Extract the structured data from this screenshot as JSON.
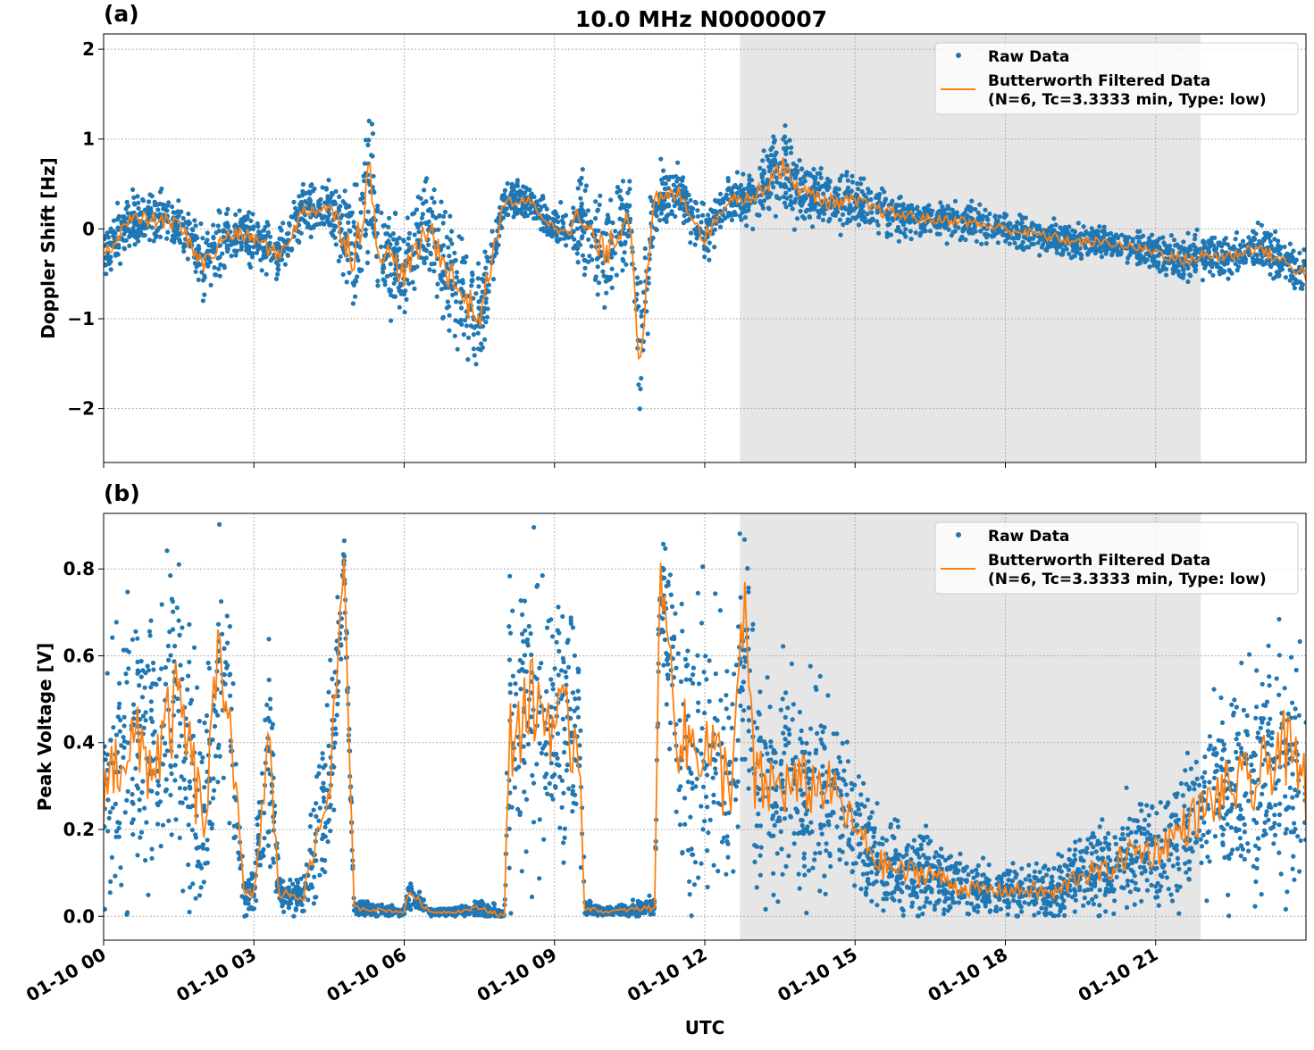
{
  "title": "10.0 MHz N0000007",
  "xlabel": "UTC",
  "x_tick_labels": [
    "01-10 00",
    "01-10 03",
    "01-10 06",
    "01-10 09",
    "01-10 12",
    "01-10 15",
    "01-10 18",
    "01-10 21"
  ],
  "x_tick_hours": [
    0,
    3,
    6,
    9,
    12,
    15,
    18,
    21
  ],
  "xlim_hours": [
    0,
    24
  ],
  "shaded_interval_hours": [
    12.7,
    21.9
  ],
  "colors": {
    "raw": "#1f77b4",
    "filtered": "#ff7f0e",
    "shade": "#e6e6e6"
  },
  "legend": {
    "raw": "Raw Data",
    "filtered_line1": "Butterworth Filtered Data",
    "filtered_line2": "(N=6, Tc=3.3333 min, Type: low)",
    "placement": "upper-right"
  },
  "chart_data": [
    {
      "type": "scatter+line",
      "panel_label": "(a)",
      "ylabel": "Doppler Shift [Hz]",
      "ylim": [
        -2.6,
        2.17
      ],
      "y_ticks": [
        -2,
        -1,
        0,
        1,
        2
      ],
      "y_tick_labels": [
        "−2",
        "−1",
        "0",
        "1",
        "2"
      ],
      "grid": true,
      "x_hours": [
        0,
        0.5,
        1,
        1.5,
        2,
        2.5,
        3,
        3.5,
        4,
        4.5,
        5,
        5.3,
        5.5,
        6,
        6.5,
        7,
        7.5,
        8,
        8.5,
        9,
        9.5,
        10,
        10.5,
        10.7,
        11,
        11.5,
        12,
        12.5,
        13,
        13.5,
        14,
        14.5,
        15,
        15.5,
        16,
        16.5,
        17,
        17.5,
        18,
        18.5,
        19,
        19.5,
        20,
        20.5,
        21,
        21.5,
        22,
        22.5,
        23,
        23.5,
        24
      ],
      "filtered": [
        -0.3,
        0.1,
        0.1,
        0.05,
        -0.4,
        -0.05,
        -0.1,
        -0.3,
        0.2,
        0.25,
        -0.3,
        0.6,
        -0.2,
        -0.5,
        0.0,
        -0.6,
        -1.0,
        0.3,
        0.3,
        0.0,
        0.1,
        -0.3,
        0.2,
        -1.45,
        0.3,
        0.4,
        -0.1,
        0.35,
        0.35,
        0.7,
        0.4,
        0.3,
        0.3,
        0.2,
        0.15,
        0.1,
        0.1,
        0.05,
        0.0,
        -0.05,
        -0.1,
        -0.15,
        -0.15,
        -0.2,
        -0.25,
        -0.35,
        -0.3,
        -0.3,
        -0.2,
        -0.35,
        -0.5
      ],
      "raw_spread": [
        0.3,
        0.3,
        0.3,
        0.3,
        0.4,
        0.3,
        0.3,
        0.3,
        0.3,
        0.3,
        0.8,
        0.8,
        0.7,
        0.5,
        0.6,
        0.7,
        0.6,
        0.2,
        0.2,
        0.2,
        0.6,
        0.6,
        0.5,
        0.8,
        0.4,
        0.3,
        0.3,
        0.2,
        0.3,
        0.5,
        0.35,
        0.3,
        0.3,
        0.25,
        0.25,
        0.2,
        0.2,
        0.2,
        0.2,
        0.2,
        0.2,
        0.2,
        0.15,
        0.15,
        0.2,
        0.25,
        0.25,
        0.25,
        0.25,
        0.25,
        0.3
      ]
    },
    {
      "type": "scatter+line",
      "panel_label": "(b)",
      "ylabel": "Peak Voltage [V]",
      "ylim": [
        -0.055,
        0.928
      ],
      "y_ticks": [
        0.0,
        0.2,
        0.4,
        0.6,
        0.8
      ],
      "y_tick_labels": [
        "0.0",
        "0.2",
        "0.4",
        "0.6",
        "0.8"
      ],
      "grid": true,
      "x_hours": [
        0,
        0.5,
        1,
        1.5,
        2,
        2.3,
        2.5,
        2.8,
        3,
        3.3,
        3.5,
        4,
        4.5,
        4.8,
        5,
        6,
        6.1,
        6.5,
        7,
        7.5,
        8,
        8.1,
        8.5,
        9,
        9.5,
        9.6,
        10,
        11,
        11.1,
        11.5,
        12,
        12.5,
        12.8,
        13,
        13.5,
        14,
        14.5,
        15,
        15.5,
        16,
        16.5,
        17,
        17.5,
        18,
        18.5,
        19,
        19.5,
        20,
        20.5,
        21,
        21.5,
        22,
        22.5,
        23,
        23.5,
        24
      ],
      "filtered": [
        0.3,
        0.4,
        0.35,
        0.5,
        0.2,
        0.6,
        0.5,
        0.05,
        0.05,
        0.4,
        0.05,
        0.05,
        0.3,
        0.8,
        0.02,
        0.01,
        0.06,
        0.01,
        0.01,
        0.02,
        0.0,
        0.4,
        0.5,
        0.45,
        0.4,
        0.02,
        0.01,
        0.02,
        0.8,
        0.4,
        0.4,
        0.3,
        0.7,
        0.3,
        0.3,
        0.3,
        0.3,
        0.2,
        0.12,
        0.1,
        0.1,
        0.07,
        0.06,
        0.06,
        0.06,
        0.05,
        0.1,
        0.1,
        0.15,
        0.15,
        0.2,
        0.25,
        0.3,
        0.3,
        0.4,
        0.3
      ],
      "raw_spread": [
        0.3,
        0.35,
        0.35,
        0.35,
        0.3,
        0.3,
        0.3,
        0.05,
        0.05,
        0.3,
        0.04,
        0.05,
        0.25,
        0.1,
        0.02,
        0.01,
        0.04,
        0.01,
        0.01,
        0.02,
        0.02,
        0.35,
        0.35,
        0.35,
        0.35,
        0.02,
        0.01,
        0.03,
        0.1,
        0.35,
        0.35,
        0.35,
        0.3,
        0.3,
        0.25,
        0.25,
        0.2,
        0.15,
        0.12,
        0.1,
        0.1,
        0.08,
        0.06,
        0.06,
        0.07,
        0.07,
        0.1,
        0.1,
        0.12,
        0.14,
        0.16,
        0.2,
        0.25,
        0.28,
        0.3,
        0.3
      ]
    }
  ]
}
